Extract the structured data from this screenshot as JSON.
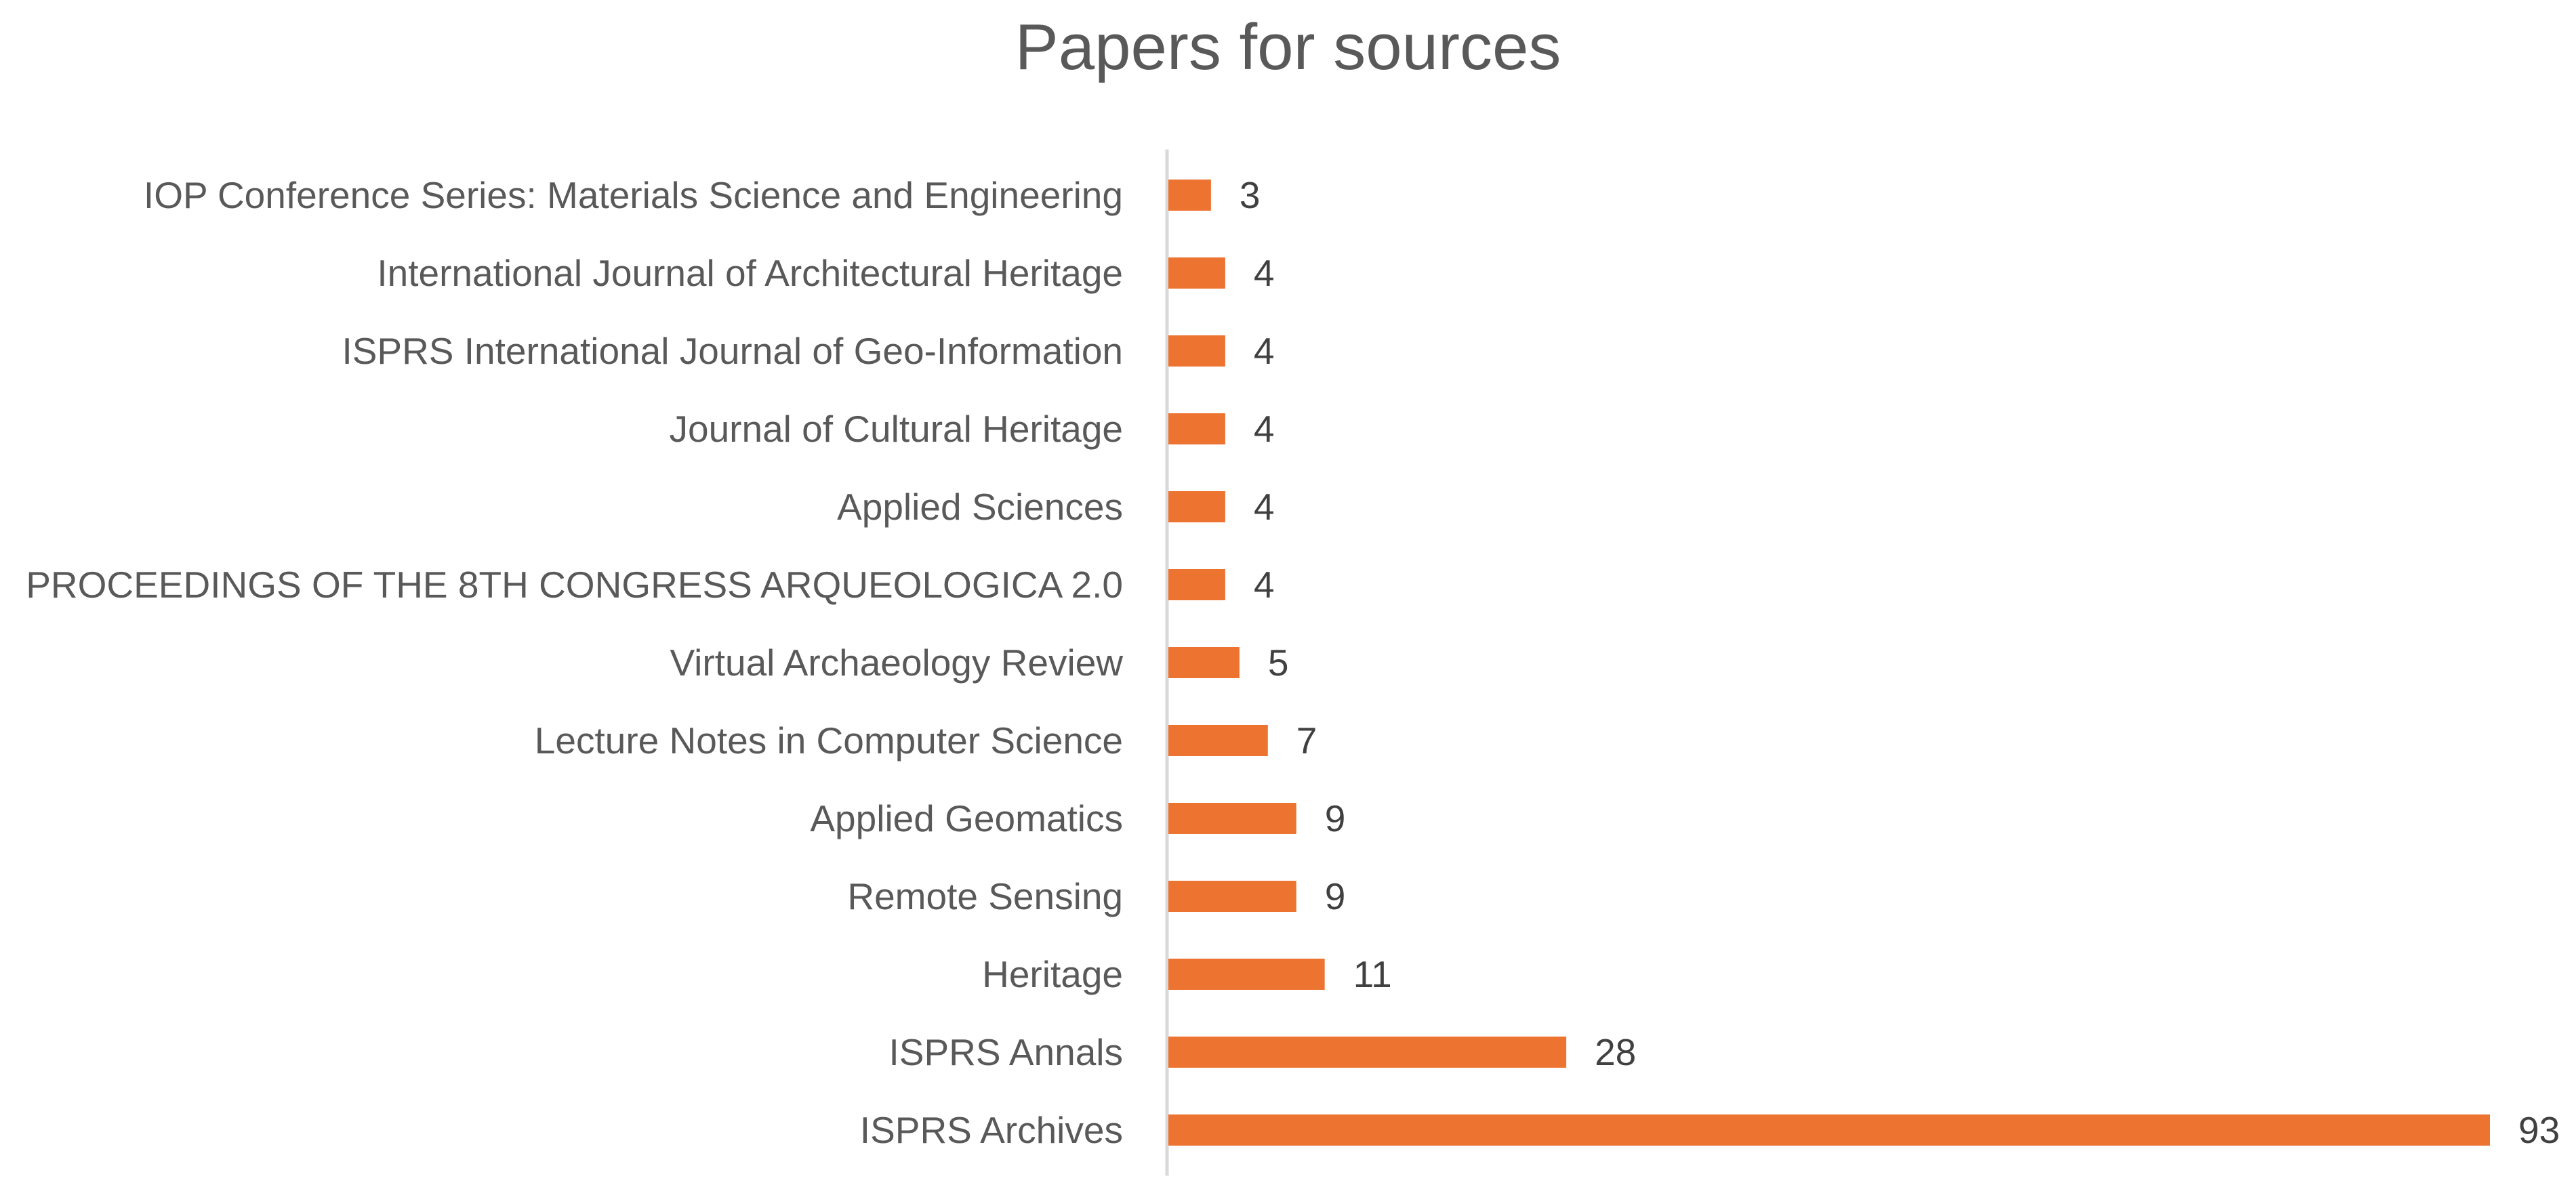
{
  "chart_data": {
    "type": "bar",
    "orientation": "horizontal",
    "title": "Papers for sources",
    "xlabel": "",
    "ylabel": "",
    "categories": [
      "IOP Conference Series: Materials Science and Engineering",
      "International Journal of Architectural Heritage",
      "ISPRS International Journal of Geo-Information",
      "Journal of Cultural Heritage",
      "Applied Sciences",
      "PROCEEDINGS OF THE 8TH CONGRESS ARQUEOLOGICA 2.0",
      "Virtual Archaeology Review",
      "Lecture Notes in Computer Science",
      "Applied Geomatics",
      "Remote Sensing",
      "Heritage",
      "ISPRS Annals",
      "ISPRS Archives"
    ],
    "values": [
      3,
      4,
      4,
      4,
      4,
      4,
      5,
      7,
      9,
      9,
      11,
      28,
      93
    ],
    "xlim": [
      0,
      93
    ],
    "data_labels": true,
    "grid": false,
    "legend": "none",
    "bar_color": "#ED7331",
    "axis_color": "#D9D9D9",
    "label_color": "#595959"
  }
}
